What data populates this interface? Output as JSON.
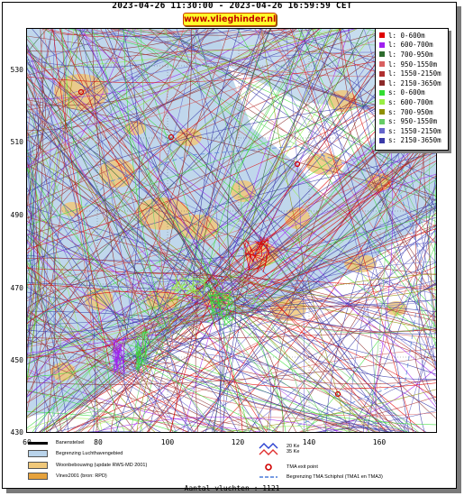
{
  "header": {
    "title": "2023-04-26 11:30:00 - 2023-04-26 16:59:59 CET",
    "site": "www.vlieghinder.nl"
  },
  "axes": {
    "y_ticks": [
      "530",
      "510",
      "490",
      "470",
      "450",
      "430"
    ],
    "x_ticks": [
      "60",
      "80",
      "100",
      "120",
      "140",
      "160"
    ]
  },
  "legend": {
    "items": [
      {
        "label": "l: 0-600m",
        "color": "#e00000"
      },
      {
        "label": "l: 600-700m",
        "color": "#a020f0"
      },
      {
        "label": "l: 700-950m",
        "color": "#2e6b2e"
      },
      {
        "label": "l: 950-1550m",
        "color": "#d96060"
      },
      {
        "label": "l: 1550-2150m",
        "color": "#b03030"
      },
      {
        "label": "l: 2150-3650m",
        "color": "#8b2a2a"
      },
      {
        "label": "s: 0-600m",
        "color": "#33dd33"
      },
      {
        "label": "s: 600-700m",
        "color": "#99ee44"
      },
      {
        "label": "s: 700-950m",
        "color": "#8f8f00"
      },
      {
        "label": "s: 950-1550m",
        "color": "#66cc66"
      },
      {
        "label": "s: 1550-2150m",
        "color": "#6666cc"
      },
      {
        "label": "s: 2150-3650m",
        "color": "#3a3aa8"
      }
    ]
  },
  "bottom_legend": {
    "banenstelsel": "Banenstelsel",
    "luchthaven": "Begrenzing Luchthavengebied",
    "woonbebouwing": "Woonbebouwing (update RWS-MD 2001)",
    "vinex": "Vinex2001 (bron: RPD)",
    "contour_20": "20 Ke",
    "contour_35": "35 Ke",
    "tma_exit": "TMA exit point",
    "tma_border": "Begrenzing TMA Schiphol  (TMA1 en TMA3)"
  },
  "footer": {
    "count": "Aantal vluchten : 1121"
  },
  "colors": {
    "badge_bg": "#ffff2a",
    "badge_text": "#c40000",
    "airport_area": "#b9d3ea",
    "residential": "#f0c87a"
  }
}
